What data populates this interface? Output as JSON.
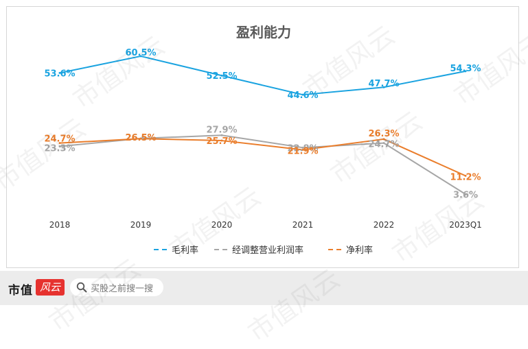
{
  "chart_data": {
    "type": "line",
    "title": "盈利能力",
    "categories": [
      "2018",
      "2019",
      "2020",
      "2021",
      "2022",
      "2023Q1"
    ],
    "xlabel": "",
    "ylabel": "",
    "ylim": [
      0,
      65
    ],
    "grid": false,
    "legend_position": "bottom",
    "series": [
      {
        "name": "毛利率",
        "color": "#1aa3e0",
        "values": [
          53.6,
          60.5,
          52.5,
          44.6,
          47.7,
          54.3
        ],
        "labels": [
          "53.6%",
          "60.5%",
          "52.5%",
          "44.6%",
          "47.7%",
          "54.3%"
        ]
      },
      {
        "name": "经调整营业利润率",
        "color": "#a6a6a6",
        "values": [
          23.3,
          26.6,
          27.9,
          22.8,
          24.7,
          3.6
        ],
        "labels": [
          "23.3%",
          "26.6%",
          "27.9%",
          "22.8%",
          "24.7%",
          "3.6%"
        ]
      },
      {
        "name": "净利率",
        "color": "#ea7d2b",
        "values": [
          24.7,
          26.5,
          25.7,
          21.9,
          26.3,
          11.2
        ],
        "labels": [
          "24.7%",
          "26.5%",
          "25.7%",
          "21.9%",
          "26.3%",
          "11.2%"
        ]
      }
    ]
  },
  "footer": {
    "brand": "市值",
    "brand_badge": "风云",
    "search_placeholder": "买股之前搜一搜"
  },
  "watermark_text": "市值风云"
}
